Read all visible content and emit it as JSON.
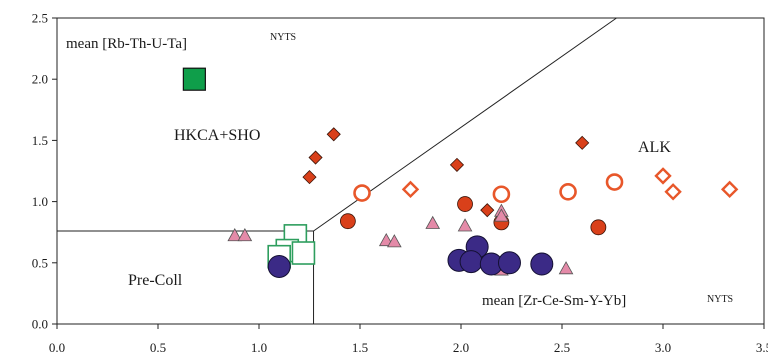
{
  "chart_data": {
    "type": "scatter",
    "xlim": [
      0,
      3.5
    ],
    "ylim": [
      0,
      2.5
    ],
    "x_ticks": [
      "0.0",
      "0.5",
      "1.0",
      "1.5",
      "2.0",
      "2.5",
      "3.0",
      "3.5"
    ],
    "y_ticks": [
      "0.0",
      "0.5",
      "1.0",
      "1.5",
      "2.0",
      "2.5"
    ],
    "grid": false,
    "labels": {
      "y_axis_mean": "mean [Rb-Th-U-Ta]",
      "y_axis_mean_sup": "NYTS",
      "x_axis_mean": "mean [Zr-Ce-Sm-Y-Yb]",
      "x_axis_mean_sup": "NYTS",
      "region_hkca": "HKCA+SHO",
      "region_alk": "ALK",
      "region_precoll": "Pre-Coll"
    },
    "boundaries": [
      {
        "points": [
          [
            0,
            0.76
          ],
          [
            1.27,
            0.76
          ],
          [
            1.27,
            0
          ]
        ]
      },
      {
        "points": [
          [
            1.27,
            0.76
          ],
          [
            2.77,
            2.5
          ]
        ]
      }
    ],
    "series": [
      {
        "marker": "square-filled",
        "color": "#0f9e4a",
        "points": [
          [
            0.68,
            2.0
          ]
        ]
      },
      {
        "marker": "diamond-filled",
        "color": "#d9401a",
        "points": [
          [
            1.37,
            1.55
          ],
          [
            1.28,
            1.36
          ],
          [
            1.25,
            1.2
          ],
          [
            1.98,
            1.3
          ],
          [
            2.6,
            1.48
          ],
          [
            2.13,
            0.93
          ]
        ]
      },
      {
        "marker": "circle-filled",
        "color": "#d9401a",
        "points": [
          [
            1.44,
            0.84
          ],
          [
            2.02,
            0.98
          ],
          [
            2.2,
            0.83
          ],
          [
            2.68,
            0.79
          ]
        ]
      },
      {
        "marker": "circle-open",
        "color": "#e8572a",
        "points": [
          [
            1.51,
            1.07
          ],
          [
            2.2,
            1.06
          ],
          [
            2.53,
            1.08
          ],
          [
            2.76,
            1.16
          ]
        ]
      },
      {
        "marker": "diamond-open",
        "color": "#e8572a",
        "points": [
          [
            1.75,
            1.1
          ],
          [
            3.0,
            1.21
          ],
          [
            3.05,
            1.08
          ],
          [
            3.33,
            1.1
          ]
        ]
      },
      {
        "marker": "triangle-filled",
        "color": "#e48aa8",
        "points": [
          [
            0.88,
            0.72
          ],
          [
            0.93,
            0.72
          ],
          [
            1.63,
            0.68
          ],
          [
            1.67,
            0.67
          ],
          [
            1.86,
            0.82
          ],
          [
            2.02,
            0.8
          ],
          [
            2.2,
            0.92
          ],
          [
            2.2,
            0.88
          ],
          [
            2.02,
            0.5
          ],
          [
            2.1,
            0.52
          ],
          [
            2.2,
            0.44
          ],
          [
            2.52,
            0.45
          ]
        ]
      },
      {
        "marker": "square-open",
        "color": "#2e9e5e",
        "points": [
          [
            1.18,
            0.72
          ],
          [
            1.14,
            0.6
          ],
          [
            1.22,
            0.58
          ],
          [
            1.1,
            0.55
          ]
        ]
      },
      {
        "marker": "circle-large",
        "color": "#3b2a86",
        "points": [
          [
            1.1,
            0.47
          ],
          [
            2.08,
            0.63
          ],
          [
            1.99,
            0.52
          ],
          [
            2.05,
            0.51
          ],
          [
            2.15,
            0.49
          ],
          [
            2.24,
            0.5
          ],
          [
            2.4,
            0.49
          ]
        ]
      }
    ]
  }
}
